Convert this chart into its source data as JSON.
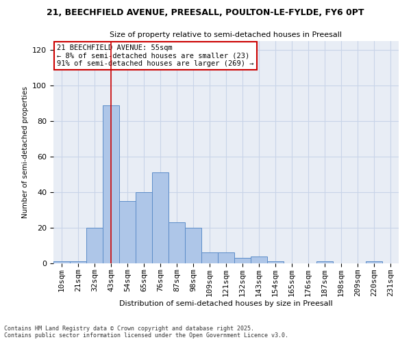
{
  "title1": "21, BEECHFIELD AVENUE, PREESALL, POULTON-LE-FYLDE, FY6 0PT",
  "title2": "Size of property relative to semi-detached houses in Preesall",
  "xlabel": "Distribution of semi-detached houses by size in Preesall",
  "ylabel": "Number of semi-detached properties",
  "categories": [
    "10sqm",
    "21sqm",
    "32sqm",
    "43sqm",
    "54sqm",
    "65sqm",
    "76sqm",
    "87sqm",
    "98sqm",
    "109sqm",
    "121sqm",
    "132sqm",
    "143sqm",
    "154sqm",
    "165sqm",
    "176sqm",
    "187sqm",
    "198sqm",
    "209sqm",
    "220sqm",
    "231sqm"
  ],
  "values": [
    1,
    1,
    20,
    89,
    35,
    40,
    51,
    23,
    20,
    6,
    6,
    3,
    4,
    1,
    0,
    0,
    1,
    0,
    0,
    1,
    0
  ],
  "highlight_index": 3,
  "annotation_title": "21 BEECHFIELD AVENUE: 55sqm",
  "annotation_line1": "← 8% of semi-detached houses are smaller (23)",
  "annotation_line2": "91% of semi-detached houses are larger (269) →",
  "bar_color": "#aec6e8",
  "bar_edge_color": "#5b8cc8",
  "highlight_line_color": "#cc0000",
  "annotation_box_color": "#cc0000",
  "grid_color": "#c8d4e8",
  "background_color": "#e8edf5",
  "ylim": [
    0,
    125
  ],
  "yticks": [
    0,
    20,
    40,
    60,
    80,
    100,
    120
  ],
  "footnote1": "Contains HM Land Registry data © Crown copyright and database right 2025.",
  "footnote2": "Contains public sector information licensed under the Open Government Licence v3.0."
}
